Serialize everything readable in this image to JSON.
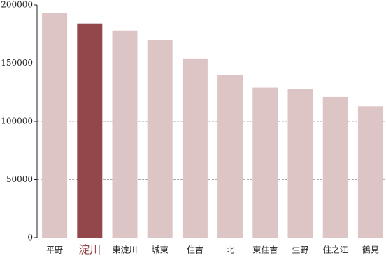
{
  "chart_data": {
    "type": "bar",
    "categories": [
      "平野",
      "淀川",
      "東淀川",
      "城東",
      "住吉",
      "北",
      "東住吉",
      "生野",
      "住之江",
      "鶴見"
    ],
    "values": [
      193000,
      184000,
      178000,
      170000,
      154000,
      140000,
      129000,
      128000,
      121000,
      113000
    ],
    "color": "#dec5c5",
    "highlight": 1,
    "highlight_color": "#93474b",
    "ylim": [
      0,
      200000
    ],
    "yticks": [
      0,
      50000,
      100000,
      150000,
      200000
    ],
    "grid": true
  }
}
